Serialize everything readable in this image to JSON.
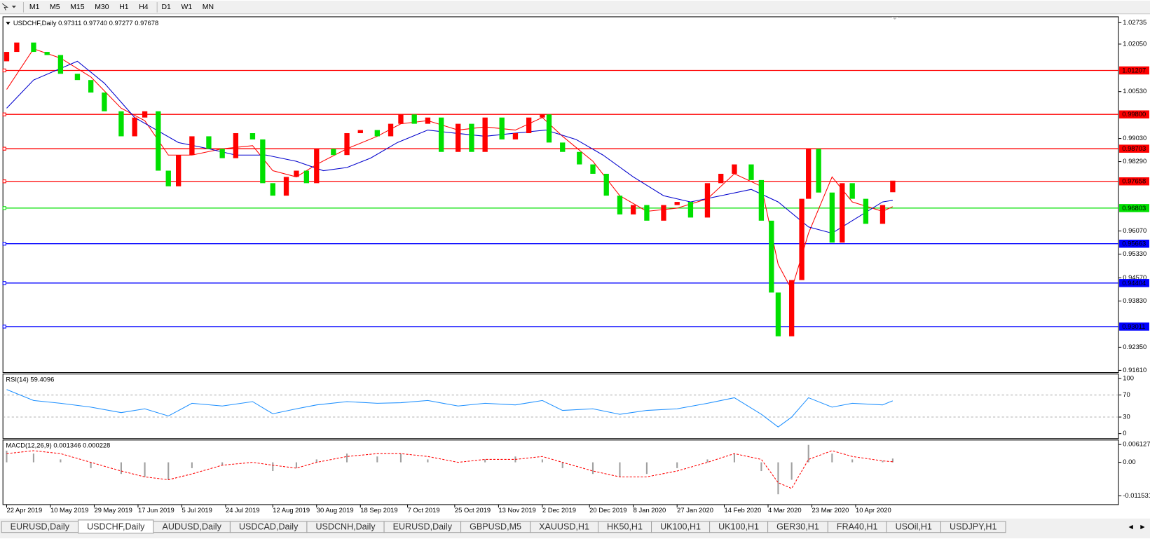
{
  "toolbar": {
    "timeframes": [
      "M1",
      "M5",
      "M15",
      "M30",
      "H1",
      "H4",
      "D1",
      "W1",
      "MN"
    ]
  },
  "chart_data": [
    {
      "type": "candlestick",
      "title": "USDCHF,Daily 0.97311 0.97740 0.97277 0.97678",
      "bull_color": "#ff0000",
      "bear_color": "#00e000",
      "xlim": [
        -1.1,
        330
      ],
      "ylim": [
        0.9154,
        1.029
      ],
      "xticks": [
        {
          "value": 0,
          "label": "22 Apr 2019"
        },
        {
          "value": 13,
          "label": "10 May 2019"
        },
        {
          "value": 26,
          "label": "29 May 2019"
        },
        {
          "value": 39,
          "label": "17 Jun 2019"
        },
        {
          "value": 52,
          "label": "5 Jul 2019"
        },
        {
          "value": 65,
          "label": "24 Jul 2019"
        },
        {
          "value": 79,
          "label": "12 Aug 2019"
        },
        {
          "value": 92,
          "label": "30 Aug 2019"
        },
        {
          "value": 105,
          "label": "18 Sep 2019"
        },
        {
          "value": 119,
          "label": "7 Oct 2019"
        },
        {
          "value": 133,
          "label": "25 Oct 2019"
        },
        {
          "value": 146,
          "label": "13 Nov 2019"
        },
        {
          "value": 159,
          "label": "2 Dec 2019"
        },
        {
          "value": 173,
          "label": "20 Dec 2019"
        },
        {
          "value": 186,
          "label": "8 Jan 2020"
        },
        {
          "value": 199,
          "label": "27 Jan 2020"
        },
        {
          "value": 213,
          "label": "14 Feb 2020"
        },
        {
          "value": 226,
          "label": "4 Mar 2020"
        },
        {
          "value": 239,
          "label": "23 Mar 2020"
        },
        {
          "value": 252,
          "label": "10 Apr 2020"
        }
      ],
      "yticks": [
        1.02735,
        {
          "value": 1.0205,
          "label": "1.02050"
        },
        {
          "value": 1.0053,
          "label": "1.00530"
        },
        {
          "value": 0.9903,
          "label": "0.99030"
        },
        {
          "value": 0.9829,
          "label": "0.98290"
        },
        {
          "value": 0.9607,
          "label": "0.96070"
        },
        {
          "value": 0.9533,
          "label": "0.95330"
        },
        {
          "value": 0.9457,
          "label": "0.94570"
        },
        {
          "value": 0.9383,
          "label": "0.93830"
        },
        {
          "value": 0.9235,
          "label": "0.92350"
        },
        {
          "value": 0.9161,
          "label": "0.91610"
        }
      ],
      "levels": [
        {
          "value": 1.01207,
          "label": "1.01207",
          "color": "#ff0000"
        },
        {
          "value": 0.998,
          "label": "0.99800",
          "color": "#ff0000"
        },
        {
          "value": 0.98703,
          "label": "0.98703",
          "color": "#ff0000"
        },
        {
          "value": 0.97658,
          "label": "0.97658",
          "color": "#ff0000"
        },
        {
          "value": 0.96803,
          "label": "0.96803",
          "color": "#00e000"
        },
        {
          "value": 0.95663,
          "label": "0.95663",
          "color": "#0000ff"
        },
        {
          "value": 0.94404,
          "label": "0.94404",
          "color": "#0000ff"
        },
        {
          "value": 0.93011,
          "label": "0.93011",
          "color": "#0000ff"
        }
      ],
      "x": [
        0,
        3,
        8,
        12,
        16,
        21,
        25,
        29,
        34,
        38,
        41,
        45,
        48,
        51,
        55,
        60,
        64,
        68,
        73,
        76,
        79,
        83,
        86,
        89,
        92,
        97,
        101,
        105,
        110,
        114,
        117,
        121,
        125,
        129,
        134,
        138,
        142,
        147,
        151,
        155,
        159,
        161,
        165,
        170,
        174,
        178,
        182,
        186,
        190,
        195,
        199,
        203,
        208,
        212,
        216,
        221,
        224,
        227,
        229,
        233,
        236,
        238,
        241,
        245,
        248,
        251,
        255,
        260,
        263
      ],
      "open": [
        1.015,
        1.018,
        1.021,
        1.018,
        1.017,
        1.011,
        1.009,
        1.005,
        0.999,
        0.991,
        0.997,
        0.999,
        0.98,
        0.975,
        0.985,
        0.991,
        0.987,
        0.984,
        0.992,
        0.99,
        0.976,
        0.972,
        0.978,
        0.98,
        0.976,
        0.987,
        0.985,
        0.992,
        0.993,
        0.991,
        0.995,
        0.998,
        0.995,
        0.997,
        0.986,
        0.995,
        0.986,
        0.997,
        0.99,
        0.992,
        0.997,
        0.998,
        0.989,
        0.986,
        0.982,
        0.979,
        0.972,
        0.966,
        0.969,
        0.964,
        0.969,
        0.97,
        0.965,
        0.976,
        0.979,
        0.982,
        0.977,
        0.964,
        0.941,
        0.927,
        0.945,
        0.971,
        0.987,
        0.973,
        0.957,
        0.976,
        0.971,
        0.963,
        0.9731
      ],
      "close": [
        1.018,
        1.021,
        1.018,
        1.017,
        1.011,
        1.009,
        1.005,
        0.999,
        0.991,
        0.997,
        0.999,
        0.98,
        0.975,
        0.985,
        0.991,
        0.987,
        0.984,
        0.992,
        0.99,
        0.976,
        0.972,
        0.978,
        0.98,
        0.976,
        0.987,
        0.985,
        0.992,
        0.993,
        0.991,
        0.995,
        0.998,
        0.995,
        0.997,
        0.986,
        0.995,
        0.986,
        0.997,
        0.99,
        0.992,
        0.997,
        0.998,
        0.989,
        0.986,
        0.982,
        0.979,
        0.972,
        0.966,
        0.969,
        0.964,
        0.969,
        0.97,
        0.965,
        0.976,
        0.979,
        0.982,
        0.977,
        0.964,
        0.941,
        0.927,
        0.945,
        0.971,
        0.987,
        0.973,
        0.957,
        0.976,
        0.971,
        0.963,
        0.969,
        0.9768
      ],
      "series": [
        {
          "color": "#ff0000",
          "x": [
            0,
            8,
            16,
            25,
            34,
            41,
            48,
            55,
            64,
            73,
            79,
            86,
            92,
            101,
            110,
            117,
            125,
            134,
            142,
            151,
            159,
            165,
            174,
            182,
            190,
            199,
            208,
            216,
            224,
            229,
            233,
            238,
            245,
            251,
            260,
            263
          ],
          "values": [
            1.006,
            1.019,
            1.016,
            1.01,
            1.0,
            0.996,
            0.985,
            0.985,
            0.987,
            0.988,
            0.98,
            0.978,
            0.982,
            0.987,
            0.991,
            0.995,
            0.996,
            0.993,
            0.994,
            0.993,
            0.997,
            0.991,
            0.983,
            0.972,
            0.967,
            0.968,
            0.971,
            0.979,
            0.975,
            0.95,
            0.942,
            0.96,
            0.978,
            0.97,
            0.967,
            0.9685
          ]
        },
        {
          "color": "#0000cd",
          "x": [
            0,
            8,
            21,
            29,
            38,
            51,
            60,
            68,
            77,
            86,
            94,
            101,
            108,
            116,
            125,
            133,
            142,
            151,
            160,
            169,
            177,
            186,
            195,
            203,
            212,
            221,
            229,
            238,
            245,
            251,
            260,
            263
          ],
          "values": [
            1.0,
            1.009,
            1.015,
            1.008,
            0.997,
            0.989,
            0.987,
            0.985,
            0.985,
            0.983,
            0.98,
            0.981,
            0.984,
            0.989,
            0.993,
            0.992,
            0.991,
            0.992,
            0.993,
            0.99,
            0.985,
            0.978,
            0.972,
            0.97,
            0.972,
            0.974,
            0.97,
            0.962,
            0.96,
            0.964,
            0.97,
            0.9705
          ]
        }
      ]
    },
    {
      "type": "line",
      "title": "RSI(14) 59.4096",
      "ylim": [
        -9,
        108
      ],
      "yticks": [
        100,
        70,
        30,
        0
      ],
      "levels": [
        70,
        30
      ],
      "x": [
        0,
        8,
        16,
        25,
        34,
        41,
        48,
        55,
        64,
        73,
        79,
        86,
        92,
        101,
        110,
        117,
        125,
        134,
        142,
        151,
        159,
        165,
        174,
        182,
        190,
        199,
        208,
        216,
        224,
        229,
        233,
        238,
        245,
        251,
        260,
        263
      ],
      "series": [
        {
          "color": "#1e90ff",
          "values": [
            80,
            60,
            55,
            48,
            38,
            45,
            32,
            55,
            50,
            58,
            36,
            45,
            52,
            58,
            55,
            56,
            60,
            50,
            55,
            52,
            60,
            42,
            45,
            35,
            42,
            45,
            55,
            65,
            35,
            12,
            30,
            65,
            48,
            55,
            52,
            59.41
          ]
        }
      ]
    },
    {
      "type": "macd",
      "title": "MACD(12,26,9) 0.001346 0.000228",
      "ylim": [
        -0.01455,
        0.00766
      ],
      "yticks": [
        0.006127,
        {
          "value": 0,
          "label": "0.00"
        },
        -0.011531
      ],
      "x": [
        0,
        8,
        16,
        25,
        34,
        41,
        48,
        55,
        64,
        73,
        79,
        86,
        92,
        101,
        110,
        117,
        125,
        134,
        142,
        151,
        159,
        165,
        174,
        182,
        190,
        199,
        208,
        216,
        224,
        229,
        233,
        238,
        245,
        251,
        260,
        263
      ],
      "series": [
        {
          "kind": "bar",
          "color": "#a0a0a0",
          "values": [
            0.004,
            0.003,
            0.001,
            -0.002,
            -0.004,
            -0.005,
            -0.006,
            -0.002,
            -0.001,
            0.0,
            -0.003,
            -0.002,
            0.001,
            0.003,
            0.002,
            0.003,
            0.001,
            0.0,
            0.001,
            0.002,
            0.001,
            -0.002,
            -0.004,
            -0.005,
            -0.004,
            -0.002,
            0.001,
            0.003,
            -0.003,
            -0.011,
            -0.006,
            0.006,
            0.003,
            0.001,
            0.0005,
            0.0013
          ]
        },
        {
          "kind": "dashed",
          "color": "#ff0000",
          "values": [
            0.003,
            0.004,
            0.003,
            0.0,
            -0.003,
            -0.005,
            -0.006,
            -0.004,
            -0.001,
            0.0,
            -0.001,
            -0.002,
            0.0,
            0.002,
            0.003,
            0.003,
            0.002,
            0.0,
            0.001,
            0.001,
            0.002,
            0.0,
            -0.003,
            -0.005,
            -0.005,
            -0.003,
            0.0,
            0.003,
            0.001,
            -0.007,
            -0.009,
            0.001,
            0.004,
            0.002,
            0.0005,
            0.0002
          ]
        }
      ]
    }
  ],
  "tabs": {
    "active": 1,
    "items": [
      "EURUSD,Daily",
      "USDCHF,Daily",
      "AUDUSD,Daily",
      "USDCAD,Daily",
      "USDCNH,Daily",
      "EURUSD,Daily",
      "GBPUSD,M5",
      "XAUUSD,H1",
      "HK50,H1",
      "UK100,H1",
      "UK100,H1",
      "GER30,H1",
      "FRA40,H1",
      "USOil,H1",
      "USDJPY,H1"
    ]
  }
}
